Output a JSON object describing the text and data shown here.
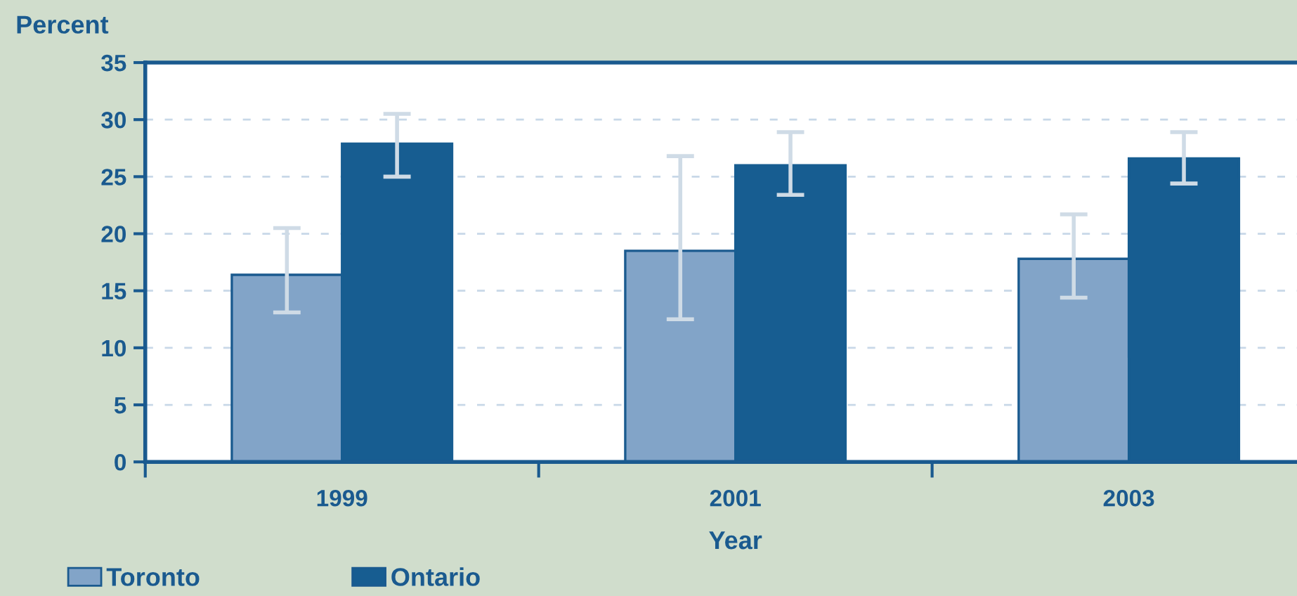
{
  "chart_data": {
    "type": "bar",
    "xlabel": "Year",
    "ylabel": "Percent",
    "categories": [
      "1999",
      "2001",
      "2003"
    ],
    "series": [
      {
        "name": "Toronto",
        "color": "#82a4c8",
        "values": [
          16.4,
          18.5,
          17.8
        ],
        "errors": [
          [
            13.1,
            20.5
          ],
          [
            12.5,
            26.8
          ],
          [
            14.4,
            21.7
          ]
        ]
      },
      {
        "name": "Ontario",
        "color": "#175d91",
        "values": [
          27.9,
          26.0,
          26.6
        ],
        "errors": [
          [
            25.0,
            30.5
          ],
          [
            23.4,
            28.9
          ],
          [
            24.4,
            28.9
          ]
        ]
      }
    ],
    "ylim": [
      0,
      35
    ],
    "yticks": [
      0,
      5,
      10,
      15,
      20,
      25,
      30,
      35
    ],
    "grid": "y",
    "legend": "bottom left"
  }
}
